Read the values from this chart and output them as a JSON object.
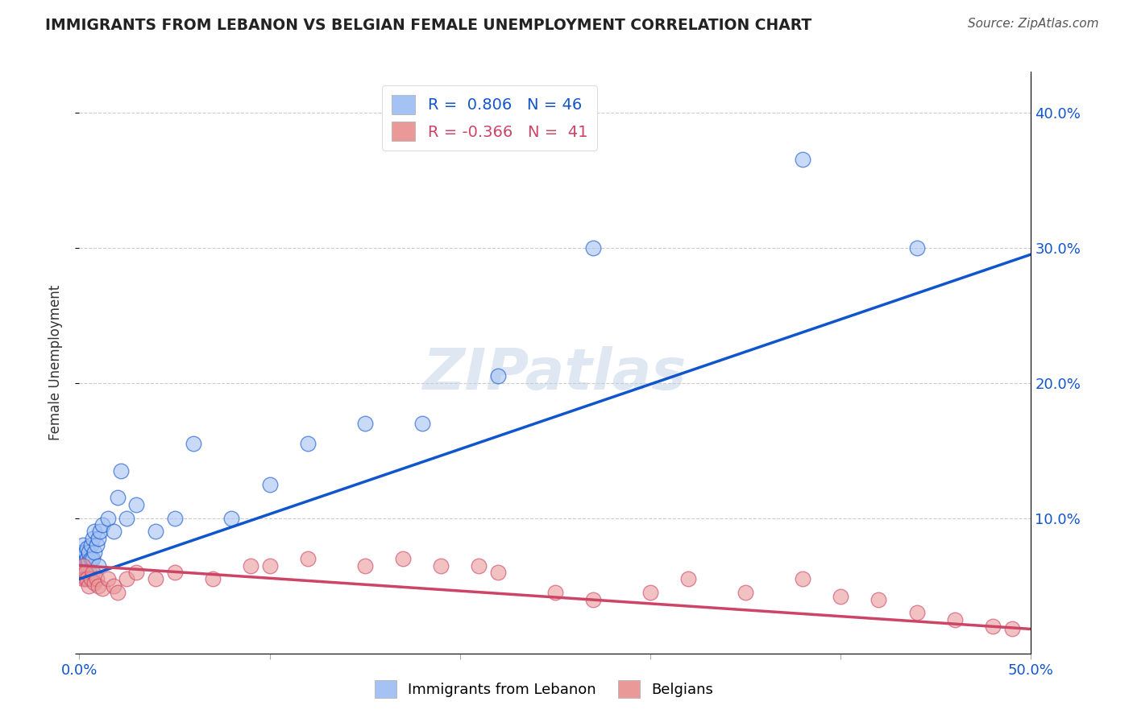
{
  "title": "IMMIGRANTS FROM LEBANON VS BELGIAN FEMALE UNEMPLOYMENT CORRELATION CHART",
  "source": "Source: ZipAtlas.com",
  "ylabel": "Female Unemployment",
  "xlim": [
    0.0,
    0.5
  ],
  "ylim": [
    0.0,
    0.43
  ],
  "yticks": [
    0.0,
    0.1,
    0.2,
    0.3,
    0.4
  ],
  "ytick_labels": [
    "",
    "10.0%",
    "20.0%",
    "30.0%",
    "40.0%"
  ],
  "xticks": [
    0.0,
    0.1,
    0.2,
    0.3,
    0.4,
    0.5
  ],
  "xtick_labels": [
    "0.0%",
    "",
    "",
    "",
    "",
    "50.0%"
  ],
  "blue_R": 0.806,
  "blue_N": 46,
  "pink_R": -0.366,
  "pink_N": 41,
  "watermark": "ZIPatlas",
  "blue_color": "#a4c2f4",
  "pink_color": "#ea9999",
  "blue_line_color": "#1155cc",
  "pink_line_color": "#cc4466",
  "legend_label_blue": "Immigrants from Lebanon",
  "legend_label_pink": "Belgians",
  "blue_line_x0": 0.0,
  "blue_line_y0": 0.055,
  "blue_line_x1": 0.5,
  "blue_line_y1": 0.295,
  "pink_line_x0": 0.0,
  "pink_line_y0": 0.065,
  "pink_line_x1": 0.5,
  "pink_line_y1": 0.018,
  "blue_scatter_x": [
    0.001,
    0.001,
    0.001,
    0.002,
    0.002,
    0.002,
    0.002,
    0.003,
    0.003,
    0.003,
    0.003,
    0.004,
    0.004,
    0.004,
    0.005,
    0.005,
    0.005,
    0.006,
    0.006,
    0.007,
    0.007,
    0.008,
    0.008,
    0.009,
    0.01,
    0.01,
    0.011,
    0.012,
    0.015,
    0.018,
    0.02,
    0.022,
    0.025,
    0.03,
    0.04,
    0.05,
    0.06,
    0.08,
    0.1,
    0.12,
    0.15,
    0.18,
    0.22,
    0.27,
    0.38,
    0.44
  ],
  "blue_scatter_y": [
    0.065,
    0.07,
    0.075,
    0.06,
    0.065,
    0.072,
    0.08,
    0.06,
    0.065,
    0.068,
    0.075,
    0.065,
    0.07,
    0.078,
    0.062,
    0.068,
    0.075,
    0.07,
    0.08,
    0.07,
    0.085,
    0.075,
    0.09,
    0.08,
    0.065,
    0.085,
    0.09,
    0.095,
    0.1,
    0.09,
    0.115,
    0.135,
    0.1,
    0.11,
    0.09,
    0.1,
    0.155,
    0.1,
    0.125,
    0.155,
    0.17,
    0.17,
    0.205,
    0.3,
    0.365,
    0.3
  ],
  "pink_scatter_x": [
    0.001,
    0.002,
    0.002,
    0.003,
    0.003,
    0.004,
    0.005,
    0.006,
    0.007,
    0.008,
    0.009,
    0.01,
    0.012,
    0.015,
    0.018,
    0.02,
    0.025,
    0.03,
    0.04,
    0.05,
    0.07,
    0.09,
    0.1,
    0.12,
    0.15,
    0.17,
    0.19,
    0.21,
    0.22,
    0.25,
    0.27,
    0.3,
    0.32,
    0.35,
    0.38,
    0.4,
    0.42,
    0.44,
    0.46,
    0.48,
    0.49
  ],
  "pink_scatter_y": [
    0.06,
    0.055,
    0.065,
    0.055,
    0.06,
    0.055,
    0.05,
    0.055,
    0.06,
    0.052,
    0.055,
    0.05,
    0.048,
    0.055,
    0.05,
    0.045,
    0.055,
    0.06,
    0.055,
    0.06,
    0.055,
    0.065,
    0.065,
    0.07,
    0.065,
    0.07,
    0.065,
    0.065,
    0.06,
    0.045,
    0.04,
    0.045,
    0.055,
    0.045,
    0.055,
    0.042,
    0.04,
    0.03,
    0.025,
    0.02,
    0.018
  ]
}
